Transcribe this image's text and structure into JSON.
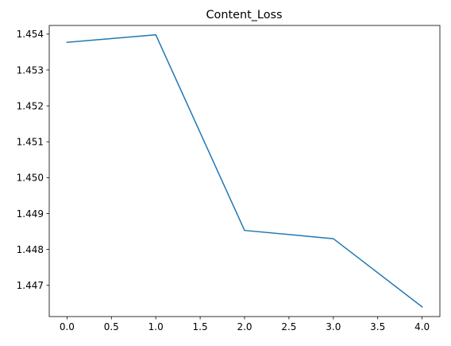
{
  "chart_data": {
    "type": "line",
    "title": "Content_Loss",
    "xlabel": "",
    "ylabel": "",
    "x": [
      0,
      1,
      2,
      3,
      4
    ],
    "series": [
      {
        "values": [
          1.45377,
          1.45398,
          1.44853,
          1.4483,
          1.4464
        ],
        "color": "#1f77b4"
      }
    ],
    "xlim": [
      -0.2,
      4.2
    ],
    "ylim": [
      1.44613,
      1.45424
    ],
    "xticks": [
      "0.0",
      "0.5",
      "1.0",
      "1.5",
      "2.0",
      "2.5",
      "3.0",
      "3.5",
      "4.0"
    ],
    "yticks": [
      "1.447",
      "1.448",
      "1.449",
      "1.450",
      "1.451",
      "1.452",
      "1.453",
      "1.454"
    ],
    "grid": false,
    "legend": false
  }
}
